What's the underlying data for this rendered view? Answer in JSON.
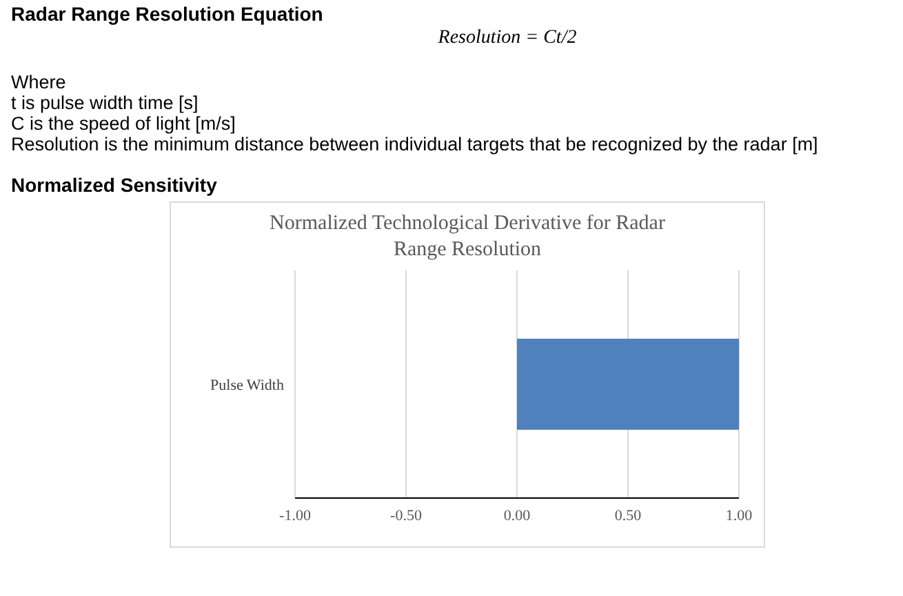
{
  "chart_data": {
    "type": "bar",
    "orientation": "horizontal",
    "title": "Normalized Technological Derivative for Radar Range Resolution",
    "annotations": [
      "Radar Range Resolution Equation",
      "Resolution = Ct/2",
      "Where",
      "t is pulse width time [s]",
      "C is the speed of light [m/s]",
      "Resolution is the minimum distance between individual targets that be recognized by the radar [m]",
      "Normalized Sensitivity"
    ],
    "categories": [
      "Pulse Width"
    ],
    "values": [
      1
    ],
    "color": "#4f81bd",
    "xlim": [
      -1,
      1
    ],
    "xticks": [
      {
        "value": -1,
        "label": "-1.00"
      },
      {
        "value": -0.5,
        "label": "-0.50"
      },
      {
        "value": 0,
        "label": "0.00"
      },
      {
        "value": 0.5,
        "label": "0.50"
      },
      {
        "value": 1,
        "label": "1.00"
      }
    ],
    "grid": "x"
  }
}
